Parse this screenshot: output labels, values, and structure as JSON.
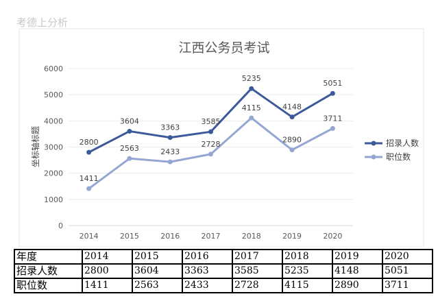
{
  "watermark": "考德上分析",
  "table": {
    "header_label": "年度",
    "rows": [
      {
        "label": "招录人数",
        "series_index": 0
      },
      {
        "label": "职位数",
        "series_index": 1
      }
    ]
  },
  "chart_data": {
    "type": "line",
    "title": "江西公务员考试",
    "ylabel": "坐标轴标题",
    "xlabel": "",
    "categories": [
      "2014",
      "2015",
      "2016",
      "2017",
      "2018",
      "2019",
      "2020"
    ],
    "ylim": [
      0,
      6000
    ],
    "yticks": [
      0,
      1000,
      2000,
      3000,
      4000,
      5000,
      6000
    ],
    "grid": true,
    "legend_position": "right",
    "series": [
      {
        "name": "招录人数",
        "values": [
          2800,
          3604,
          3363,
          3585,
          5235,
          4148,
          5051
        ],
        "color": "#3c5a9a"
      },
      {
        "name": "职位数",
        "values": [
          1411,
          2563,
          2433,
          2728,
          4115,
          2890,
          3711
        ],
        "color": "#94a6d2"
      }
    ]
  }
}
